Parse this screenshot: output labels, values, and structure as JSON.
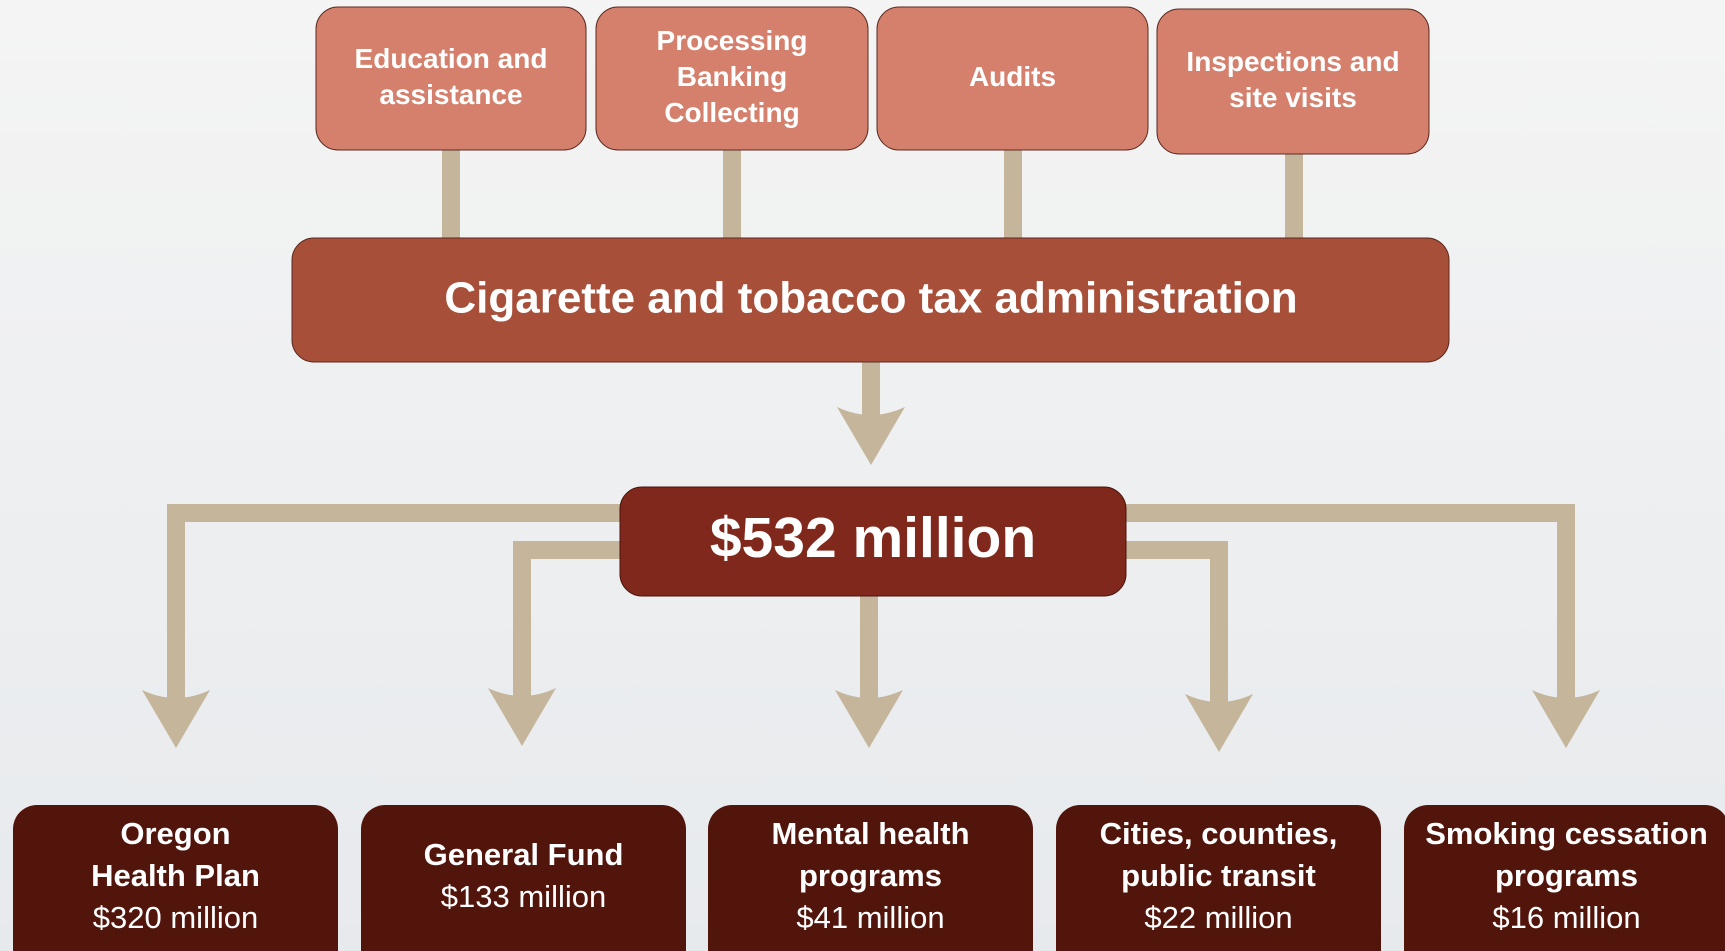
{
  "sources": [
    {
      "lines": [
        "Education and",
        "assistance"
      ]
    },
    {
      "lines": [
        "Processing",
        "Banking",
        "Collecting"
      ]
    },
    {
      "lines": [
        "Audits"
      ]
    },
    {
      "lines": [
        "Inspections and",
        "site visits"
      ]
    }
  ],
  "administration": "Cigarette and tobacco tax administration",
  "total": "$532 million",
  "destinations": [
    {
      "lines": [
        "Oregon",
        "Health Plan"
      ],
      "amount": "$320 million"
    },
    {
      "lines": [
        "General Fund"
      ],
      "amount": "$133 million"
    },
    {
      "lines": [
        "Mental health",
        "programs"
      ],
      "amount": "$41 million"
    },
    {
      "lines": [
        "Cities, counties,",
        "public transit"
      ],
      "amount": "$22 million"
    },
    {
      "lines": [
        "Smoking cessation",
        "programs"
      ],
      "amount": "$16 million"
    }
  ]
}
